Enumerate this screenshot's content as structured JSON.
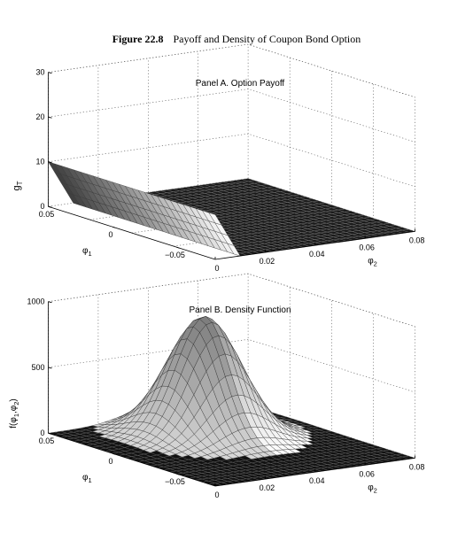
{
  "figure": {
    "number": "Figure 22.8",
    "title": "Payoff and Density of Coupon Bond Option"
  },
  "chart_data": [
    {
      "type": "surface",
      "title": "Panel A. Option Payoff",
      "zlabel": "g",
      "zlabel_subscript": "T",
      "xlabel": "φ",
      "xlabel_subscript": "1",
      "ylabel": "φ",
      "ylabel_subscript": "2",
      "x_range": [
        -0.08,
        0.05
      ],
      "y_range": [
        0,
        0.08
      ],
      "z_range": [
        0,
        30
      ],
      "x_ticks": [
        "0.05",
        "0",
        "−0.05"
      ],
      "y_ticks": [
        "0",
        "0.02",
        "0.04",
        "0.06",
        "0.08"
      ],
      "z_ticks": [
        "0",
        "10",
        "20",
        "30"
      ],
      "surface": "payoff = max(0, 10 − 150·φ2), flat in φ1",
      "peak_value": 10,
      "grid": true
    },
    {
      "type": "surface",
      "title": "Panel B. Density Function",
      "zlabel": "f(φ",
      "zlabel_sub1": "1",
      "zlabel_mid": ",φ",
      "zlabel_sub2": "2",
      "zlabel_end": ")",
      "xlabel": "φ",
      "xlabel_subscript": "1",
      "ylabel": "φ",
      "ylabel_subscript": "2",
      "x_range": [
        -0.08,
        0.05
      ],
      "y_range": [
        0,
        0.08
      ],
      "z_range": [
        0,
        1000
      ],
      "x_ticks": [
        "0.05",
        "0",
        "−0.05"
      ],
      "y_ticks": [
        "0",
        "0.02",
        "0.04",
        "0.06",
        "0.08"
      ],
      "z_ticks": [
        "0",
        "500",
        "1000"
      ],
      "surface": "bivariate normal density centered near φ1 = 0.01, φ2 = 0.04",
      "peak_value": 900,
      "grid": true
    }
  ]
}
